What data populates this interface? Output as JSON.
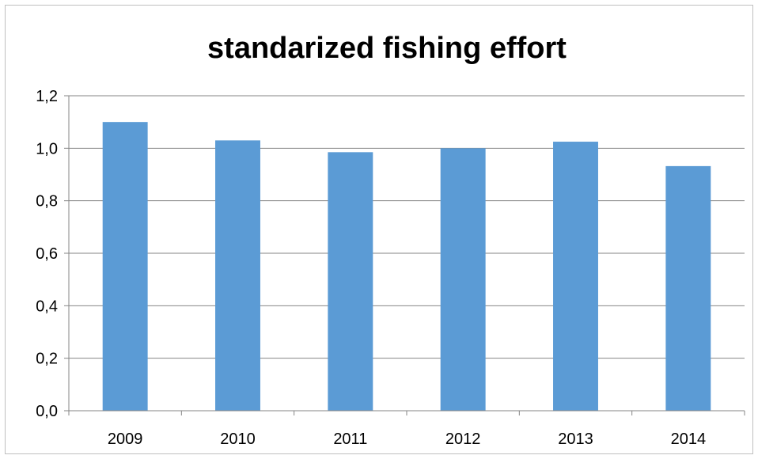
{
  "chart_data": {
    "type": "bar",
    "title": "standarized fishing effort",
    "categories": [
      "2009",
      "2010",
      "2011",
      "2012",
      "2013",
      "2014"
    ],
    "series": [
      {
        "values": [
          1.1,
          1.03,
          0.985,
          1.0,
          1.025,
          0.932
        ]
      }
    ],
    "y_tick_labels": [
      "0,0",
      "0,2",
      "0,4",
      "0,6",
      "0,8",
      "1,0",
      "1,2"
    ],
    "ylim": [
      0,
      1.2
    ],
    "y_step": 0.2,
    "grid": true,
    "legend": "none",
    "bar_color": "#5b9bd5",
    "gridline_color": "#868686",
    "axis_color": "#868686"
  }
}
